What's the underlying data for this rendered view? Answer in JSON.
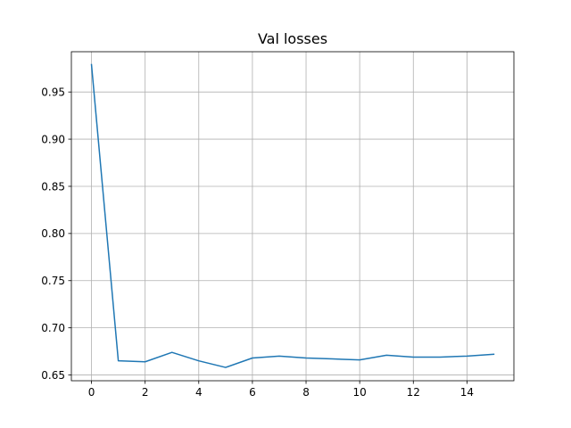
{
  "chart_data": {
    "type": "line",
    "title": "Val losses",
    "xlabel": "",
    "ylabel": "",
    "xlim": [
      -0.75,
      15.75
    ],
    "ylim": [
      0.6439,
      0.9927
    ],
    "x_ticks": [
      0,
      2,
      4,
      6,
      8,
      10,
      12,
      14
    ],
    "y_ticks": [
      0.65,
      0.7,
      0.75,
      0.8,
      0.85,
      0.9,
      0.95
    ],
    "y_tick_labels": [
      "0.65",
      "0.70",
      "0.75",
      "0.80",
      "0.85",
      "0.90",
      "0.95"
    ],
    "grid": true,
    "legend": false,
    "series": [
      {
        "color": "#1f77b4",
        "x": [
          0,
          1,
          2,
          3,
          4,
          5,
          6,
          7,
          8,
          9,
          10,
          11,
          12,
          13,
          14,
          15
        ],
        "values": [
          0.979,
          0.665,
          0.664,
          0.674,
          0.665,
          0.658,
          0.668,
          0.67,
          0.668,
          0.667,
          0.666,
          0.671,
          0.669,
          0.669,
          0.67,
          0.672
        ]
      }
    ]
  }
}
